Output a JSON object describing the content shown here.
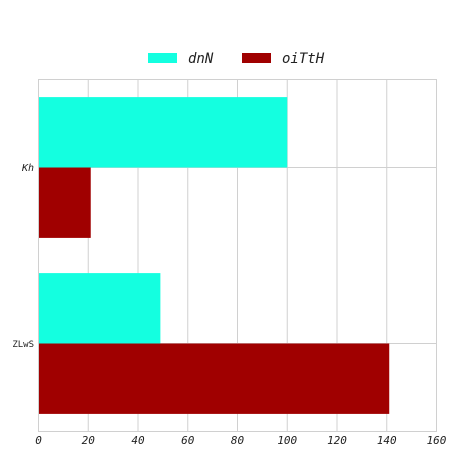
{
  "chart_data": {
    "type": "bar",
    "orientation": "horizontal",
    "categories": [
      "Kh",
      "ZLwS"
    ],
    "series": [
      {
        "name": "dnN",
        "values": [
          100,
          49
        ],
        "color": "#14ffe0"
      },
      {
        "name": "oiTtH",
        "values": [
          21,
          141
        ],
        "color": "#a00000"
      }
    ],
    "xlim": [
      0,
      160
    ],
    "x_ticks": [
      "0",
      "20",
      "40",
      "60",
      "80",
      "100",
      "120",
      "140",
      "160"
    ],
    "grid": true,
    "legend_position": "top-center"
  }
}
